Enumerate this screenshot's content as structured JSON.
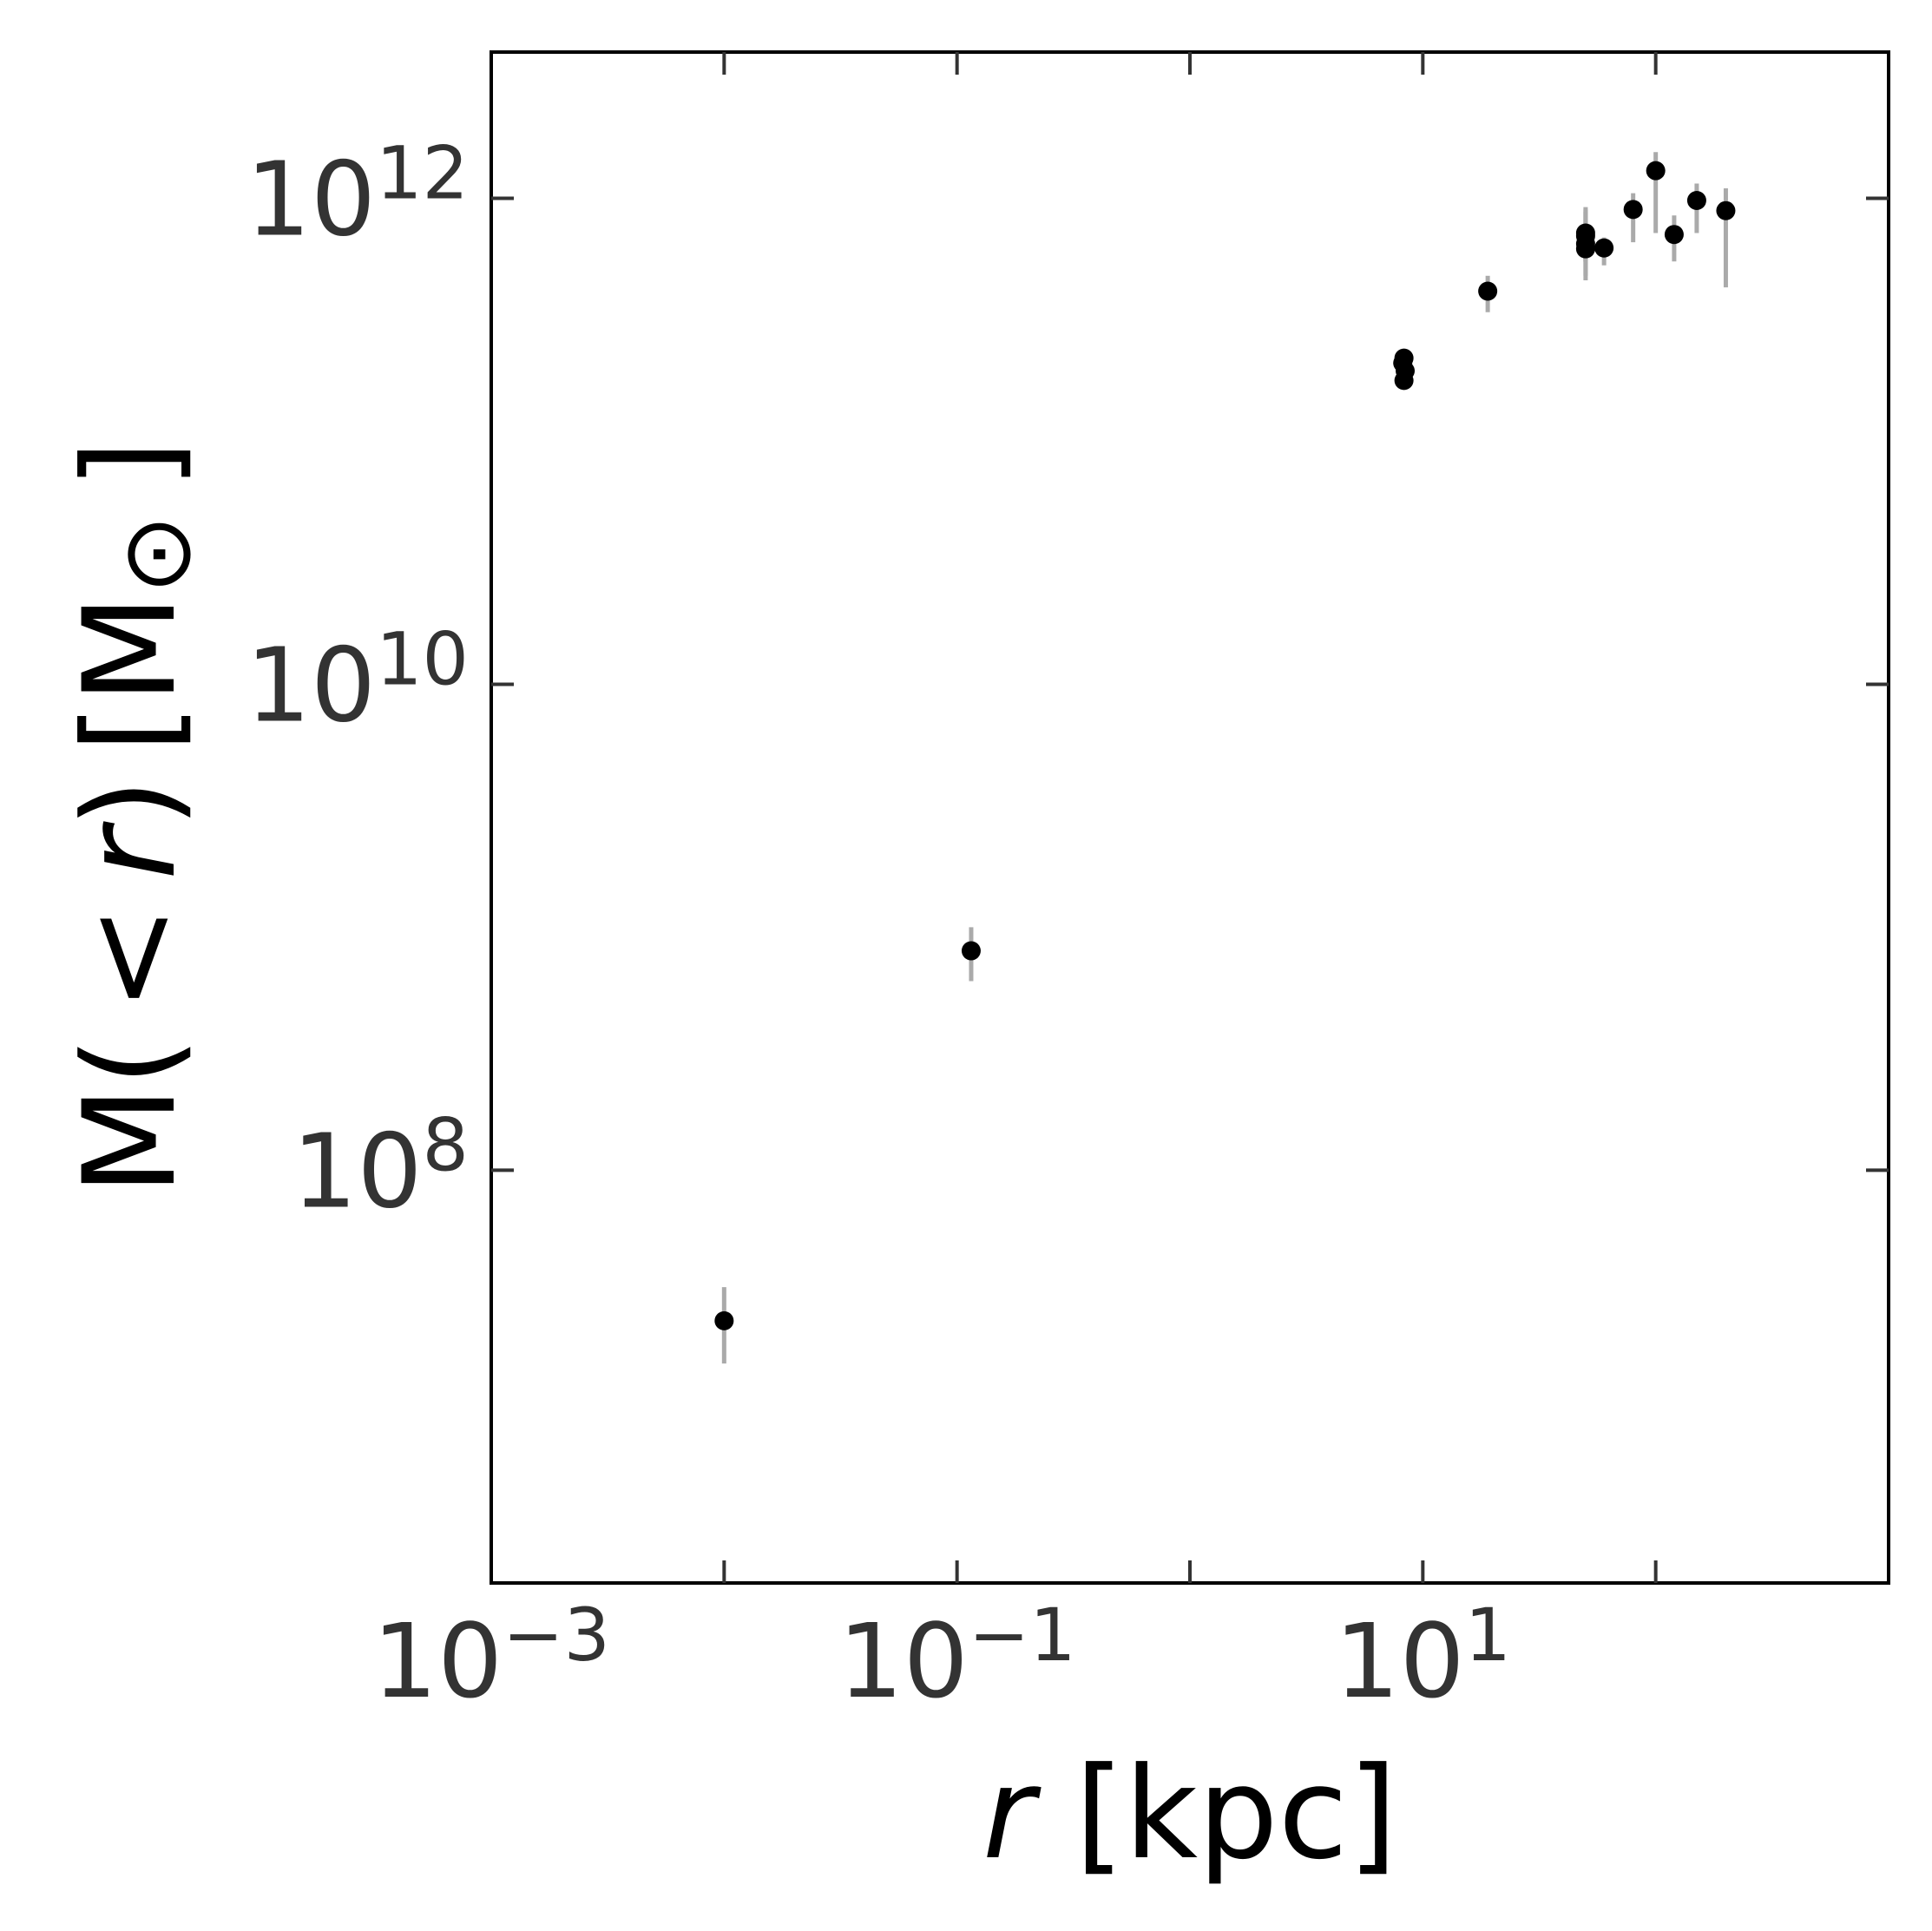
{
  "chart_data": {
    "type": "scatter",
    "title": "",
    "xlabel": {
      "italic": "r",
      "rest": " [kpc]"
    },
    "ylabel": {
      "pre": "M( < ",
      "italic": "r",
      "post": ") [M",
      "sub": "⊙",
      "end": " ]"
    },
    "xscale": "log",
    "yscale": "log",
    "xlim": [
      0.001,
      1000
    ],
    "ylim": [
      2000000.0,
      4000000000000.0
    ],
    "grid": false,
    "marker_color": "#000000",
    "errorbar_color": "#aaaaaa",
    "x_ticks": [
      {
        "value": 0.001,
        "base": "10",
        "exp": "−3"
      },
      {
        "value": 0.1,
        "base": "10",
        "exp": "−1"
      },
      {
        "value": 10,
        "base": "10",
        "exp": "1"
      }
    ],
    "y_ticks": [
      {
        "value": 100000000.0,
        "base": "10",
        "exp": "8"
      },
      {
        "value": 10000000000.0,
        "base": "10",
        "exp": "10"
      },
      {
        "value": 1000000000000.0,
        "base": "10",
        "exp": "12"
      }
    ],
    "points": [
      {
        "x": 0.01,
        "y": 24000000.0,
        "ylo": 16000000.0,
        "yhi": 33000000.0
      },
      {
        "x": 0.115,
        "y": 800000000.0,
        "ylo": 600000000.0,
        "yhi": 1000000000.0
      },
      {
        "x": 8.3,
        "y": 178000000000.0,
        "ylo": 178000000000.0,
        "yhi": 178000000000.0
      },
      {
        "x": 8.4,
        "y": 195000000000.0,
        "ylo": 195000000000.0,
        "yhi": 195000000000.0
      },
      {
        "x": 8.2,
        "y": 210000000000.0,
        "ylo": 210000000000.0,
        "yhi": 210000000000.0
      },
      {
        "x": 8.3,
        "y": 220000000000.0,
        "ylo": 220000000000.0,
        "yhi": 220000000000.0
      },
      {
        "x": 19,
        "y": 415000000000.0,
        "ylo": 340000000000.0,
        "yhi": 480000000000.0
      },
      {
        "x": 50,
        "y": 650000000000.0,
        "ylo": 480000000000.0,
        "yhi": 900000000000.0
      },
      {
        "x": 50,
        "y": 720000000000.0,
        "ylo": 550000000000.0,
        "yhi": 920000000000.0
      },
      {
        "x": 50,
        "y": 700000000000.0,
        "ylo": 550000000000.0,
        "yhi": 880000000000.0
      },
      {
        "x": 50,
        "y": 620000000000.0,
        "ylo": 460000000000.0,
        "yhi": 760000000000.0
      },
      {
        "x": 60,
        "y": 625000000000.0,
        "ylo": 530000000000.0,
        "yhi": 690000000000.0
      },
      {
        "x": 80,
        "y": 900000000000.0,
        "ylo": 660000000000.0,
        "yhi": 1050000000000.0
      },
      {
        "x": 100,
        "y": 1300000000000.0,
        "ylo": 720000000000.0,
        "yhi": 1550000000000.0
      },
      {
        "x": 120,
        "y": 710000000000.0,
        "ylo": 550000000000.0,
        "yhi": 850000000000.0
      },
      {
        "x": 150,
        "y": 980000000000.0,
        "ylo": 720000000000.0,
        "yhi": 1150000000000.0
      },
      {
        "x": 200,
        "y": 890000000000.0,
        "ylo": 430000000000.0,
        "yhi": 1100000000000.0
      }
    ]
  }
}
